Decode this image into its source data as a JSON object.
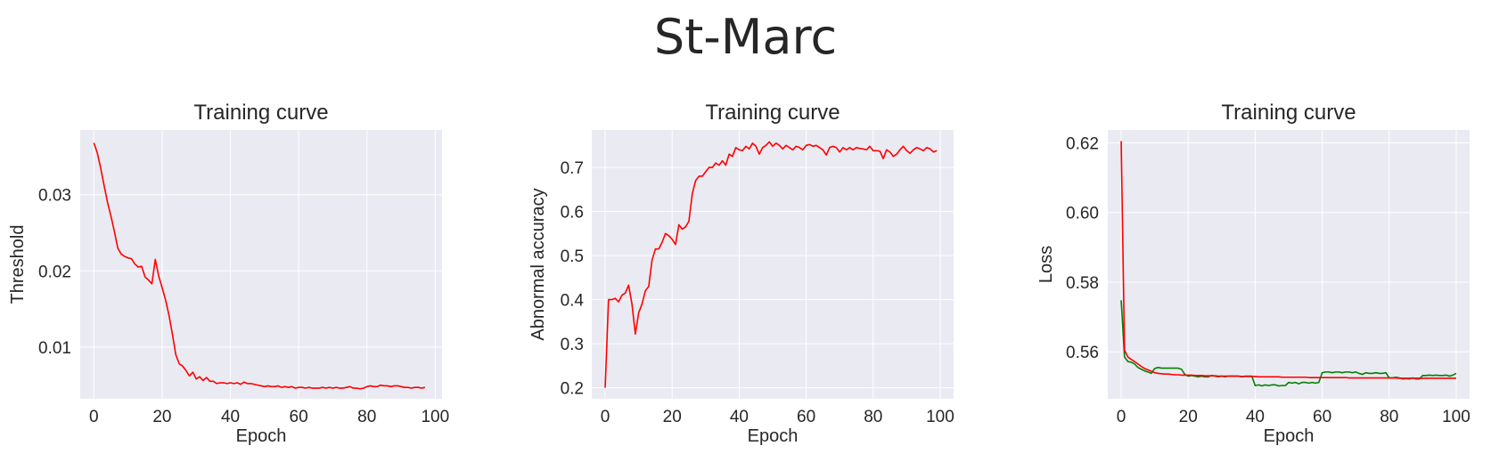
{
  "title": "St-Marc",
  "chart_data": [
    {
      "type": "line",
      "title": "Training curve",
      "xlabel": "Epoch",
      "ylabel": "Threshold",
      "xlim": [
        -4,
        102
      ],
      "ylim": [
        0.0032,
        0.0385
      ],
      "xticks": [
        0,
        20,
        40,
        60,
        80,
        100
      ],
      "yticks": [
        0.01,
        0.02,
        0.03
      ],
      "ytick_labels": [
        "0.01",
        "0.02",
        "0.03"
      ],
      "grid": true,
      "series": [
        {
          "color": "#ff0000",
          "x": [
            0,
            1,
            2,
            3,
            4,
            5,
            6,
            7,
            8,
            9,
            10,
            11,
            12,
            13,
            14,
            15,
            16,
            17,
            18,
            19,
            20,
            21,
            22,
            23,
            24,
            25,
            26,
            27,
            28,
            29,
            30,
            31,
            32,
            33,
            34,
            35,
            36,
            37,
            38,
            39,
            40,
            41,
            42,
            43,
            44,
            45,
            46,
            47,
            48,
            49,
            50,
            51,
            52,
            53,
            54,
            55,
            56,
            57,
            58,
            59,
            60,
            61,
            62,
            63,
            64,
            65,
            66,
            67,
            68,
            69,
            70,
            71,
            72,
            73,
            74,
            75,
            76,
            77,
            78,
            79,
            80,
            81,
            82,
            83,
            84,
            85,
            86,
            87,
            88,
            89,
            90,
            91,
            92,
            93,
            94,
            95,
            96,
            97
          ],
          "y": [
            0.0368,
            0.0355,
            0.0335,
            0.0312,
            0.029,
            0.0272,
            0.0252,
            0.023,
            0.0222,
            0.0219,
            0.0217,
            0.0216,
            0.0209,
            0.0205,
            0.0206,
            0.0192,
            0.0188,
            0.0183,
            0.0215,
            0.0193,
            0.0178,
            0.0162,
            0.0142,
            0.0117,
            0.009,
            0.0078,
            0.0075,
            0.0069,
            0.0062,
            0.0067,
            0.0058,
            0.0061,
            0.0056,
            0.006,
            0.0055,
            0.0055,
            0.0052,
            0.0053,
            0.0053,
            0.0052,
            0.0053,
            0.0052,
            0.0053,
            0.0051,
            0.0054,
            0.0052,
            0.0052,
            0.0051,
            0.005,
            0.0049,
            0.0048,
            0.0049,
            0.0048,
            0.0048,
            0.0049,
            0.0047,
            0.0048,
            0.0047,
            0.0048,
            0.0046,
            0.0047,
            0.0047,
            0.0046,
            0.0047,
            0.0046,
            0.0046,
            0.0046,
            0.0047,
            0.0046,
            0.0047,
            0.0046,
            0.0047,
            0.0046,
            0.0046,
            0.0047,
            0.0048,
            0.0046,
            0.0046,
            0.0045,
            0.0046,
            0.0048,
            0.0049,
            0.0048,
            0.0048,
            0.005,
            0.0049,
            0.0049,
            0.0048,
            0.0049,
            0.0049,
            0.0048,
            0.0047,
            0.0047,
            0.0046,
            0.0047,
            0.0047,
            0.0046,
            0.0047
          ]
        }
      ]
    },
    {
      "type": "line",
      "title": "Training curve",
      "xlabel": "Epoch",
      "ylabel": "Abnormal accuracy",
      "xlim": [
        -4,
        104
      ],
      "ylim": [
        0.175,
        0.785
      ],
      "xticks": [
        0,
        20,
        40,
        60,
        80,
        100
      ],
      "yticks": [
        0.2,
        0.3,
        0.4,
        0.5,
        0.6,
        0.7
      ],
      "ytick_labels": [
        "0.2",
        "0.3",
        "0.4",
        "0.5",
        "0.6",
        "0.7"
      ],
      "grid": true,
      "series": [
        {
          "color": "#ff0000",
          "x": [
            0,
            1,
            2,
            3,
            4,
            5,
            6,
            7,
            8,
            9,
            10,
            11,
            12,
            13,
            14,
            15,
            16,
            17,
            18,
            19,
            20,
            21,
            22,
            23,
            24,
            25,
            26,
            27,
            28,
            29,
            30,
            31,
            32,
            33,
            34,
            35,
            36,
            37,
            38,
            39,
            40,
            41,
            42,
            43,
            44,
            45,
            46,
            47,
            48,
            49,
            50,
            51,
            52,
            53,
            54,
            55,
            56,
            57,
            58,
            59,
            60,
            61,
            62,
            63,
            64,
            65,
            66,
            67,
            68,
            69,
            70,
            71,
            72,
            73,
            74,
            75,
            76,
            77,
            78,
            79,
            80,
            81,
            82,
            83,
            84,
            85,
            86,
            87,
            88,
            89,
            90,
            91,
            92,
            93,
            94,
            95,
            96,
            97,
            98,
            99
          ],
          "y": [
            0.2,
            0.4,
            0.4,
            0.403,
            0.395,
            0.41,
            0.415,
            0.433,
            0.39,
            0.322,
            0.37,
            0.39,
            0.42,
            0.43,
            0.49,
            0.515,
            0.515,
            0.53,
            0.55,
            0.545,
            0.537,
            0.525,
            0.57,
            0.56,
            0.565,
            0.578,
            0.64,
            0.67,
            0.68,
            0.68,
            0.69,
            0.7,
            0.7,
            0.71,
            0.705,
            0.715,
            0.705,
            0.73,
            0.725,
            0.745,
            0.74,
            0.738,
            0.748,
            0.742,
            0.755,
            0.748,
            0.73,
            0.745,
            0.75,
            0.758,
            0.748,
            0.755,
            0.75,
            0.742,
            0.75,
            0.745,
            0.74,
            0.748,
            0.745,
            0.74,
            0.75,
            0.752,
            0.748,
            0.75,
            0.745,
            0.74,
            0.728,
            0.745,
            0.748,
            0.745,
            0.735,
            0.745,
            0.74,
            0.745,
            0.74,
            0.745,
            0.743,
            0.742,
            0.74,
            0.748,
            0.738,
            0.738,
            0.737,
            0.72,
            0.74,
            0.735,
            0.725,
            0.73,
            0.74,
            0.748,
            0.738,
            0.732,
            0.74,
            0.745,
            0.742,
            0.738,
            0.745,
            0.742,
            0.735,
            0.738
          ]
        }
      ]
    },
    {
      "type": "line",
      "title": "Training curve",
      "xlabel": "Epoch",
      "ylabel": "Loss",
      "xlim": [
        -4,
        104
      ],
      "ylim": [
        0.5465,
        0.6237
      ],
      "xticks": [
        0,
        20,
        40,
        60,
        80,
        100
      ],
      "yticks": [
        0.56,
        0.58,
        0.6,
        0.62
      ],
      "ytick_labels": [
        "0.56",
        "0.58",
        "0.60",
        "0.62"
      ],
      "grid": true,
      "series": [
        {
          "color": "#008000",
          "x": [
            0,
            1,
            2,
            3,
            4,
            5,
            6,
            7,
            8,
            9,
            10,
            11,
            12,
            13,
            14,
            15,
            16,
            17,
            18,
            19,
            20,
            21,
            22,
            23,
            24,
            25,
            26,
            27,
            28,
            29,
            30,
            31,
            32,
            33,
            34,
            35,
            36,
            37,
            38,
            39,
            40,
            41,
            42,
            43,
            44,
            45,
            46,
            47,
            48,
            49,
            50,
            51,
            52,
            53,
            54,
            55,
            56,
            57,
            58,
            59,
            60,
            61,
            62,
            63,
            64,
            65,
            66,
            67,
            68,
            69,
            70,
            71,
            72,
            73,
            74,
            75,
            76,
            77,
            78,
            79,
            80,
            81,
            82,
            83,
            84,
            85,
            86,
            87,
            88,
            89,
            90,
            91,
            92,
            93,
            94,
            95,
            96,
            97,
            98,
            99,
            100
          ],
          "y": [
            0.5748,
            0.5585,
            0.5572,
            0.557,
            0.5565,
            0.5555,
            0.555,
            0.5545,
            0.5542,
            0.5538,
            0.5552,
            0.5555,
            0.5553,
            0.5553,
            0.5553,
            0.5553,
            0.5553,
            0.5553,
            0.555,
            0.5535,
            0.553,
            0.5532,
            0.553,
            0.5528,
            0.553,
            0.5528,
            0.5528,
            0.5532,
            0.553,
            0.5528,
            0.553,
            0.5528,
            0.553,
            0.553,
            0.553,
            0.553,
            0.5528,
            0.553,
            0.553,
            0.553,
            0.5503,
            0.5505,
            0.5502,
            0.5505,
            0.5503,
            0.5505,
            0.5505,
            0.5502,
            0.5503,
            0.5503,
            0.5512,
            0.551,
            0.5512,
            0.5508,
            0.5512,
            0.5512,
            0.551,
            0.5512,
            0.551,
            0.5512,
            0.554,
            0.5542,
            0.5542,
            0.554,
            0.5542,
            0.5542,
            0.554,
            0.5542,
            0.5542,
            0.554,
            0.5542,
            0.5538,
            0.5535,
            0.554,
            0.5538,
            0.5538,
            0.554,
            0.5538,
            0.5538,
            0.554,
            0.5525,
            0.5525,
            0.5527,
            0.5525,
            0.5522,
            0.5523,
            0.5522,
            0.5525,
            0.5522,
            0.5522,
            0.5532,
            0.5532,
            0.5533,
            0.5532,
            0.5533,
            0.5532,
            0.5532,
            0.5533,
            0.553,
            0.5533,
            0.5538
          ]
        },
        {
          "color": "#ff0000",
          "x": [
            0,
            1,
            2,
            3,
            4,
            5,
            6,
            7,
            8,
            9,
            10,
            11,
            12,
            13,
            14,
            15,
            16,
            17,
            18,
            19,
            20,
            21,
            22,
            23,
            24,
            25,
            26,
            27,
            28,
            29,
            30,
            31,
            32,
            33,
            34,
            35,
            36,
            37,
            38,
            39,
            40,
            41,
            42,
            43,
            44,
            45,
            46,
            47,
            48,
            49,
            50,
            51,
            52,
            53,
            54,
            55,
            56,
            57,
            58,
            59,
            60,
            61,
            62,
            63,
            64,
            65,
            66,
            67,
            68,
            69,
            70,
            71,
            72,
            73,
            74,
            75,
            76,
            77,
            78,
            79,
            80,
            81,
            82,
            83,
            84,
            85,
            86,
            87,
            88,
            89,
            90,
            91,
            92,
            93,
            94,
            95,
            96,
            97,
            98,
            99,
            100
          ],
          "y": [
            0.6205,
            0.5605,
            0.5585,
            0.5578,
            0.5572,
            0.5565,
            0.5558,
            0.5552,
            0.5548,
            0.5544,
            0.554,
            0.5538,
            0.5537,
            0.5536,
            0.5536,
            0.5535,
            0.5534,
            0.5534,
            0.5533,
            0.5533,
            0.5533,
            0.5533,
            0.5532,
            0.5532,
            0.5532,
            0.5531,
            0.5531,
            0.5531,
            0.5531,
            0.553,
            0.553,
            0.553,
            0.553,
            0.553,
            0.553,
            0.553,
            0.5529,
            0.5529,
            0.5529,
            0.5529,
            0.5529,
            0.5528,
            0.5528,
            0.5528,
            0.5528,
            0.5528,
            0.5528,
            0.5528,
            0.5527,
            0.5527,
            0.5527,
            0.5527,
            0.5527,
            0.5527,
            0.5527,
            0.5527,
            0.5526,
            0.5526,
            0.5526,
            0.5526,
            0.5526,
            0.5526,
            0.5526,
            0.5526,
            0.5526,
            0.5526,
            0.5526,
            0.5526,
            0.5525,
            0.5525,
            0.5525,
            0.5525,
            0.5525,
            0.5525,
            0.5525,
            0.5525,
            0.5525,
            0.5525,
            0.5525,
            0.5525,
            0.5525,
            0.5525,
            0.5525,
            0.5524,
            0.5524,
            0.5524,
            0.5524,
            0.5524,
            0.5524,
            0.5524,
            0.5524,
            0.5524,
            0.5524,
            0.5524,
            0.5524,
            0.5524,
            0.5524,
            0.5524,
            0.5524,
            0.5524,
            0.5524
          ]
        }
      ]
    }
  ]
}
